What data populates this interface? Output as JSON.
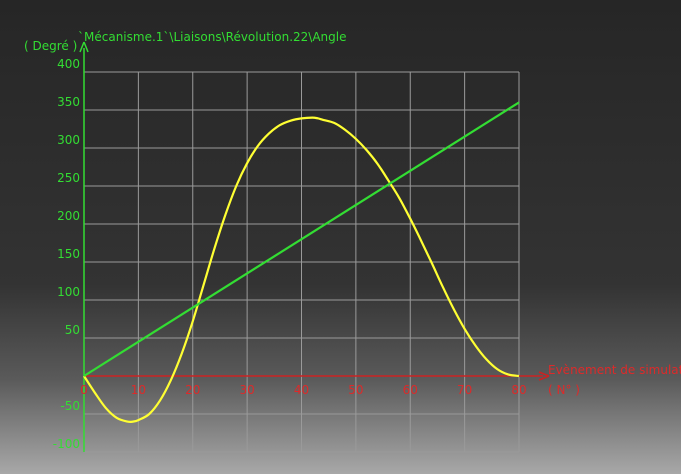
{
  "chart_data": {
    "type": "line",
    "title": "`Mécanisme.1`\\Liaisons\\Révolution.22\\Angle",
    "ylabel": "( Degré )",
    "xlabel": "Evènement de simulation",
    "xunit": "( N° )",
    "xlim": [
      0,
      80
    ],
    "ylim": [
      -100,
      400
    ],
    "xticks": [
      0,
      10,
      20,
      30,
      40,
      50,
      60,
      70,
      80
    ],
    "yticks": [
      -100,
      -50,
      50,
      100,
      150,
      200,
      250,
      300,
      350,
      400
    ],
    "grid": true,
    "series": [
      {
        "color": "#ffff33",
        "x": [
          0,
          2,
          4,
          6,
          8,
          9,
          10,
          12,
          14,
          16,
          18,
          20,
          22,
          24,
          26,
          28,
          30,
          32,
          34,
          36,
          38,
          40,
          42,
          43,
          44,
          46,
          48,
          50,
          52,
          54,
          56,
          58,
          60,
          62,
          64,
          66,
          68,
          70,
          72,
          74,
          76,
          78,
          80
        ],
        "y": [
          0,
          -22,
          -42,
          -55,
          -60,
          -60,
          -58,
          -50,
          -32,
          -5,
          30,
          72,
          120,
          168,
          212,
          250,
          280,
          303,
          319,
          330,
          336,
          339,
          340,
          339,
          337,
          333,
          324,
          312,
          297,
          279,
          257,
          234,
          207,
          178,
          148,
          117,
          88,
          62,
          40,
          22,
          9,
          2,
          0
        ]
      },
      {
        "color": "#33dd33",
        "x": [
          0,
          80
        ],
        "y": [
          0,
          360
        ]
      }
    ]
  },
  "colors": {
    "grid": "#9a9a9a",
    "y_axis": "#33dd33",
    "x_axis": "#cc2222",
    "y_text": "#33dd33",
    "x_text": "#dd2a2a"
  }
}
